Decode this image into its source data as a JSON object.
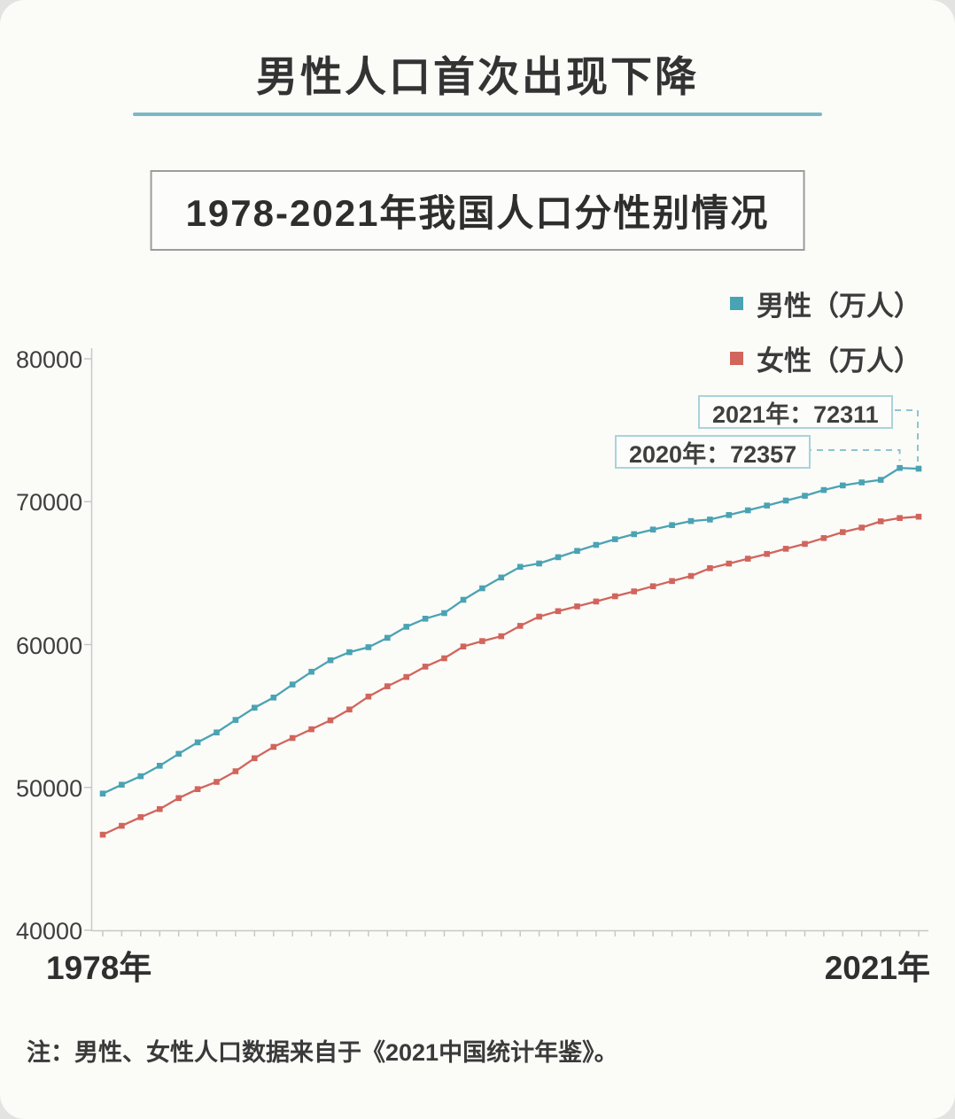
{
  "page": {
    "title": "男性人口首次出现下降",
    "subtitle": "1978-2021年我国人口分性别情况",
    "note": "注：男性、女性人口数据来自于《2021中国统计年鉴》。"
  },
  "axis": {
    "y_ticks": [
      80000,
      70000,
      60000,
      50000,
      40000
    ],
    "x_left": "1978年",
    "x_right": "2021年"
  },
  "chart_data": {
    "type": "line",
    "title": "1978-2021年我国人口分性别情况",
    "xlabel": "",
    "ylabel": "",
    "ylim": [
      40000,
      80000
    ],
    "grid": false,
    "marker": "square",
    "legend_position": "top-right",
    "x": [
      1978,
      1979,
      1980,
      1981,
      1982,
      1983,
      1984,
      1985,
      1986,
      1987,
      1988,
      1989,
      1990,
      1991,
      1992,
      1993,
      1994,
      1995,
      1996,
      1997,
      1998,
      1999,
      2000,
      2001,
      2002,
      2003,
      2004,
      2005,
      2006,
      2007,
      2008,
      2009,
      2010,
      2011,
      2012,
      2013,
      2014,
      2015,
      2016,
      2017,
      2018,
      2019,
      2020,
      2021
    ],
    "series": [
      {
        "name": "男性（万人）",
        "color": "#4aa3b3",
        "values": [
          49567,
          50192,
          50785,
          51519,
          52352,
          53152,
          53848,
          54725,
          55581,
          56290,
          57201,
          58099,
          58904,
          59466,
          59811,
          60472,
          61246,
          61808,
          62200,
          63131,
          63940,
          64692,
          65437,
          65672,
          66115,
          66556,
          66976,
          67375,
          67728,
          68048,
          68357,
          68647,
          68748,
          69068,
          69395,
          69728,
          70079,
          70414,
          70815,
          71137,
          71351,
          71527,
          72357,
          72311
        ]
      },
      {
        "name": "女性（万人）",
        "color": "#d1655c",
        "values": [
          46692,
          47313,
          47920,
          48481,
          49253,
          49878,
          50390,
          51133,
          52044,
          52838,
          53459,
          54071,
          54700,
          55457,
          56360,
          57080,
          57729,
          58454,
          59040,
          59865,
          60240,
          60585,
          61306,
          61955,
          62338,
          62671,
          63012,
          63381,
          63720,
          64081,
          64445,
          64803,
          65343,
          65667,
          66009,
          66344,
          66703,
          67048,
          67456,
          67871,
          68187,
          68626,
          68855,
          68949
        ]
      }
    ],
    "annotations": [
      {
        "label": "2021年：72311",
        "year": 2021,
        "value": 72311
      },
      {
        "label": "2020年：72357",
        "year": 2020,
        "value": 72357
      }
    ]
  }
}
